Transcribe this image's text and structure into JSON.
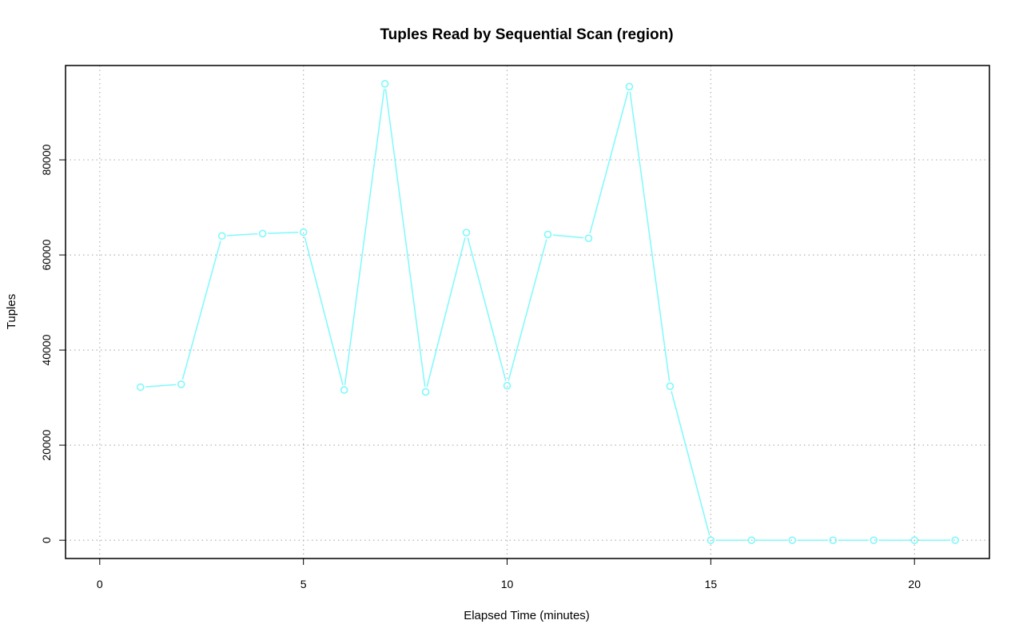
{
  "chart_data": {
    "type": "line",
    "title": "Tuples Read by Sequential Scan (region)",
    "xlabel": "Elapsed Time (minutes)",
    "ylabel": "Tuples",
    "xlim": [
      -0.84,
      21.84
    ],
    "ylim": [
      -3840,
      99840
    ],
    "x_ticks": [
      0,
      5,
      10,
      15,
      20
    ],
    "y_ticks": [
      0,
      20000,
      40000,
      60000,
      80000
    ],
    "grid": true,
    "legend": "none",
    "series": [
      {
        "color": "#7ff9fb",
        "marker": "open-circle",
        "x": [
          1,
          2,
          3,
          4,
          5,
          6,
          7,
          8,
          9,
          10,
          11,
          12,
          13,
          14,
          15,
          16,
          17,
          18,
          19,
          20,
          21
        ],
        "y": [
          32200,
          32800,
          64000,
          64500,
          64800,
          31600,
          96000,
          31200,
          64700,
          32500,
          64300,
          63500,
          95400,
          32400,
          0,
          0,
          0,
          0,
          0,
          0,
          0
        ]
      }
    ]
  }
}
